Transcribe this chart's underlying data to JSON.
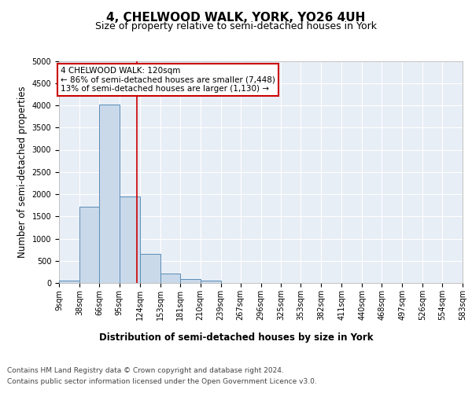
{
  "title": "4, CHELWOOD WALK, YORK, YO26 4UH",
  "subtitle": "Size of property relative to semi-detached houses in York",
  "xlabel": "Distribution of semi-detached houses by size in York",
  "ylabel": "Number of semi-detached properties",
  "footer_line1": "Contains HM Land Registry data © Crown copyright and database right 2024.",
  "footer_line2": "Contains public sector information licensed under the Open Government Licence v3.0.",
  "bar_edges": [
    9,
    38,
    66,
    95,
    124,
    153,
    181,
    210,
    239,
    267,
    296,
    325,
    353,
    382,
    411,
    440,
    468,
    497,
    526,
    554,
    583
  ],
  "bar_heights": [
    55,
    1720,
    4020,
    1940,
    660,
    220,
    90,
    60,
    0,
    0,
    0,
    0,
    0,
    0,
    0,
    0,
    0,
    0,
    0,
    0
  ],
  "bar_color": "#c9d9ea",
  "bar_edge_color": "#5b8db8",
  "property_size": 120,
  "property_line_color": "#cc0000",
  "annotation_text": "4 CHELWOOD WALK: 120sqm\n← 86% of semi-detached houses are smaller (7,448)\n13% of semi-detached houses are larger (1,130) →",
  "annotation_box_color": "#ffffff",
  "annotation_box_edge": "#cc0000",
  "ylim": [
    0,
    5000
  ],
  "yticks": [
    0,
    500,
    1000,
    1500,
    2000,
    2500,
    3000,
    3500,
    4000,
    4500,
    5000
  ],
  "x_tick_labels": [
    "9sqm",
    "38sqm",
    "66sqm",
    "95sqm",
    "124sqm",
    "153sqm",
    "181sqm",
    "210sqm",
    "239sqm",
    "267sqm",
    "296sqm",
    "325sqm",
    "353sqm",
    "382sqm",
    "411sqm",
    "440sqm",
    "468sqm",
    "497sqm",
    "526sqm",
    "554sqm",
    "583sqm"
  ],
  "background_color": "#e8eef6",
  "grid_color": "#ffffff",
  "title_fontsize": 11,
  "subtitle_fontsize": 9,
  "axis_label_fontsize": 8.5,
  "tick_fontsize": 7,
  "footer_fontsize": 6.5,
  "annotation_fontsize": 7.5
}
